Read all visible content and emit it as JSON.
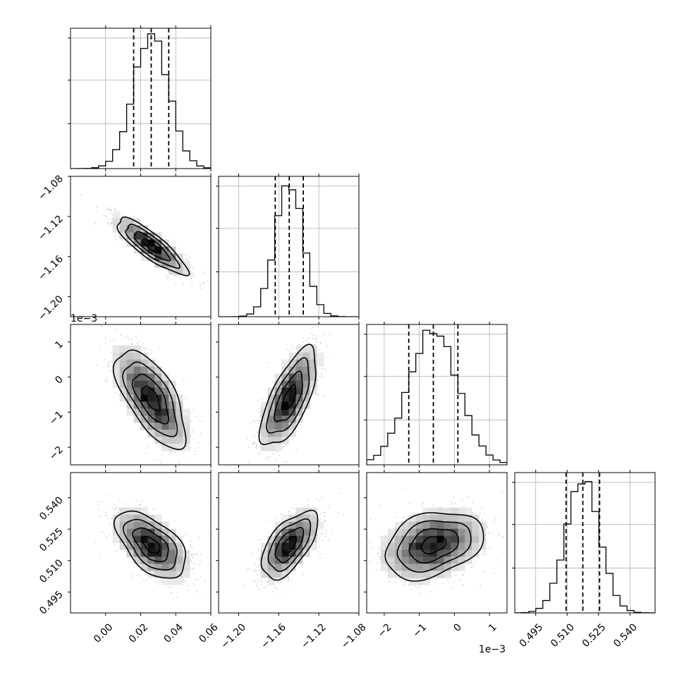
{
  "chart_data": {
    "type": "corner",
    "parameters": [
      {
        "index": 0,
        "median": 0.026,
        "q16": 0.016,
        "q84": 0.036,
        "sigma": 0.01,
        "range": [
          -0.02,
          0.06
        ],
        "ticks": [
          0.0,
          0.02,
          0.04,
          0.06
        ],
        "tick_labels": [
          "0.00",
          "0.02",
          "0.04",
          "0.06"
        ],
        "offset": ""
      },
      {
        "index": 1,
        "median": -1.1495,
        "q16": -1.1635,
        "q84": -1.1355,
        "sigma": 0.014,
        "range": [
          -1.22,
          -1.08
        ],
        "ticks": [
          -1.2,
          -1.16,
          -1.12,
          -1.08
        ],
        "tick_labels": [
          "−1.20",
          "−1.16",
          "−1.12",
          "−1.08"
        ],
        "offset": ""
      },
      {
        "index": 2,
        "median": -0.0006,
        "q16": -0.0013,
        "q84": 0.0001,
        "sigma": 0.0007,
        "range": [
          -0.0025,
          0.0015
        ],
        "ticks": [
          -0.002,
          -0.001,
          0.0,
          0.001
        ],
        "tick_labels": [
          "−2",
          "−1",
          "0",
          "1"
        ],
        "offset": "1e−3"
      },
      {
        "index": 3,
        "median": 0.5175,
        "q16": 0.5095,
        "q84": 0.5255,
        "sigma": 0.008,
        "range": [
          0.485,
          0.552
        ],
        "ticks": [
          0.495,
          0.51,
          0.525,
          0.54
        ],
        "tick_labels": [
          "0.495",
          "0.510",
          "0.525",
          "0.540"
        ],
        "offset": ""
      }
    ],
    "correlations": [
      {
        "pair": [
          1,
          0
        ],
        "rho": -0.85
      },
      {
        "pair": [
          2,
          0
        ],
        "rho": -0.65
      },
      {
        "pair": [
          2,
          1
        ],
        "rho": 0.68
      },
      {
        "pair": [
          3,
          0
        ],
        "rho": -0.55
      },
      {
        "pair": [
          3,
          1
        ],
        "rho": 0.6
      },
      {
        "pair": [
          3,
          2
        ],
        "rho": 0.3
      }
    ],
    "quantile_lines": [
      0.16,
      0.5,
      0.84
    ],
    "contour_levels": [
      0.5,
      1.0,
      1.5,
      2.0
    ],
    "histogram_bins": 20,
    "grid": true,
    "title": "",
    "xlabel": "",
    "ylabel": ""
  }
}
